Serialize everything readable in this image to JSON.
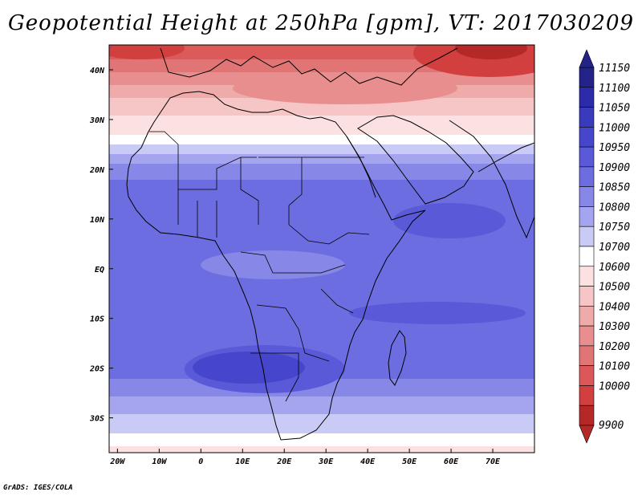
{
  "title": "Geopotential Height at 250hPa [gpm], VT: 2017030209",
  "footer": "GrADS: IGES/COLA",
  "map": {
    "lon_range": [
      -22,
      80
    ],
    "lat_range": [
      -37,
      45
    ],
    "lon_ticks": [
      {
        "value": -20,
        "label": "20W"
      },
      {
        "value": -10,
        "label": "10W"
      },
      {
        "value": 0,
        "label": "0"
      },
      {
        "value": 10,
        "label": "10E"
      },
      {
        "value": 20,
        "label": "20E"
      },
      {
        "value": 30,
        "label": "30E"
      },
      {
        "value": 40,
        "label": "40E"
      },
      {
        "value": 50,
        "label": "50E"
      },
      {
        "value": 60,
        "label": "60E"
      },
      {
        "value": 70,
        "label": "70E"
      }
    ],
    "lat_ticks": [
      {
        "value": 40,
        "label": "40N"
      },
      {
        "value": 30,
        "label": "30N"
      },
      {
        "value": 20,
        "label": "20N"
      },
      {
        "value": 10,
        "label": "10N"
      },
      {
        "value": 0,
        "label": "EQ"
      },
      {
        "value": -10,
        "label": "10S"
      },
      {
        "value": -20,
        "label": "20S"
      },
      {
        "value": -30,
        "label": "30S"
      }
    ]
  },
  "colorbar": {
    "levels": [
      {
        "label": "11150",
        "color": "#23238a"
      },
      {
        "label": "11100",
        "color": "#2c2caa"
      },
      {
        "label": "11050",
        "color": "#3a3abf"
      },
      {
        "label": "11000",
        "color": "#4646cd"
      },
      {
        "label": "10950",
        "color": "#5a5ad8"
      },
      {
        "label": "10900",
        "color": "#6d6de2"
      },
      {
        "label": "10850",
        "color": "#8787e8"
      },
      {
        "label": "10800",
        "color": "#a4a4ef"
      },
      {
        "label": "10750",
        "color": "#cacaf6"
      },
      {
        "label": "10700",
        "color": "#ffffff"
      },
      {
        "label": "10600",
        "color": "#fbe1e1"
      },
      {
        "label": "10500",
        "color": "#f6c5c5"
      },
      {
        "label": "10400",
        "color": "#efaaaa"
      },
      {
        "label": "10300",
        "color": "#e88e8e"
      },
      {
        "label": "10200",
        "color": "#e17474"
      },
      {
        "label": "10100",
        "color": "#dc5858"
      },
      {
        "label": "10000",
        "color": "#d23f3f"
      },
      {
        "label": "9900",
        "color": "#b42828"
      }
    ]
  }
}
